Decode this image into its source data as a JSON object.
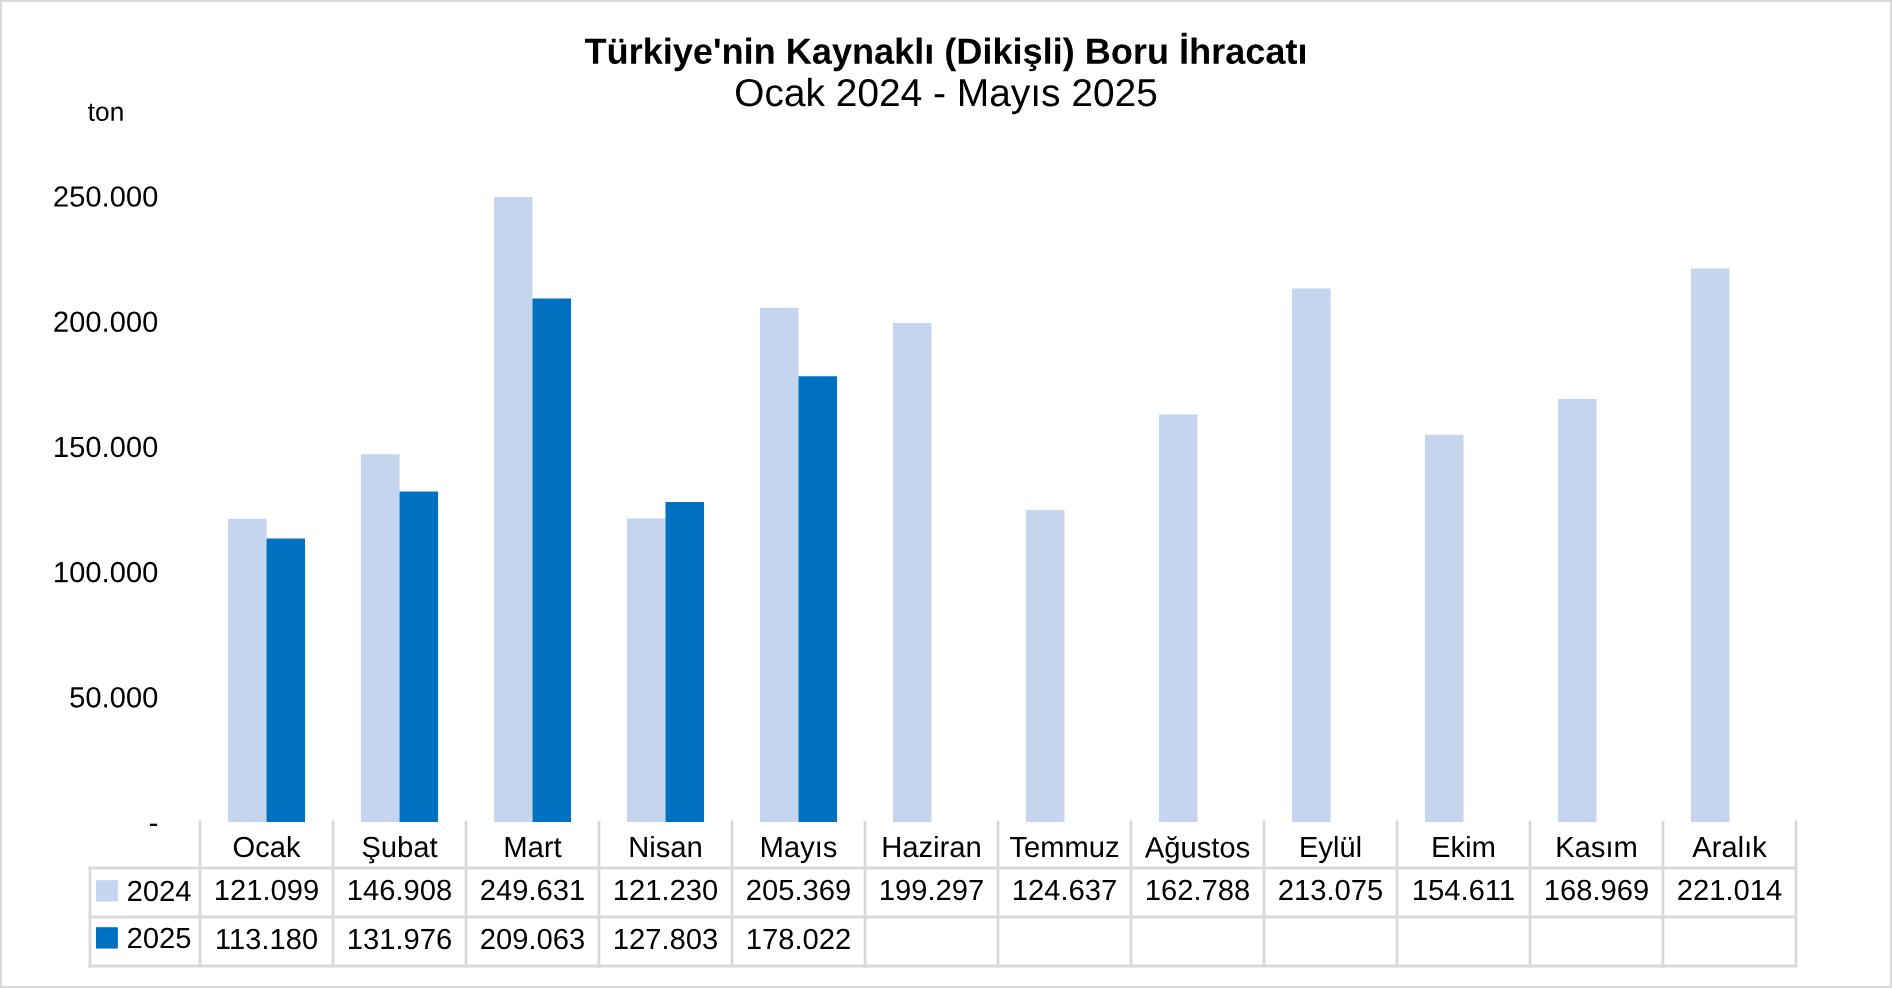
{
  "chart_data": {
    "type": "bar",
    "title": "Türkiye'nin Kaynaklı (Dikişli) Boru İhracatı",
    "subtitle": "Ocak 2024 - Mayıs 2025",
    "ylabel": "ton",
    "categories": [
      "Ocak",
      "Şubat",
      "Mart",
      "Nisan",
      "Mayıs",
      "Haziran",
      "Temmuz",
      "Ağustos",
      "Eylül",
      "Ekim",
      "Kasım",
      "Aralık"
    ],
    "series": [
      {
        "name": "2024",
        "color": "#c5d5ee",
        "values": [
          121099,
          146908,
          249631,
          121230,
          205369,
          199297,
          124637,
          162788,
          213075,
          154611,
          168969,
          221014
        ],
        "value_labels": [
          "121.099",
          "146.908",
          "249.631",
          "121.230",
          "205.369",
          "199.297",
          "124.637",
          "162.788",
          "213.075",
          "154.611",
          "168.969",
          "221.014"
        ]
      },
      {
        "name": "2025",
        "color": "#0070c0",
        "values": [
          113180,
          131976,
          209063,
          127803,
          178022,
          null,
          null,
          null,
          null,
          null,
          null,
          null
        ],
        "value_labels": [
          "113.180",
          "131.976",
          "209.063",
          "127.803",
          "178.022",
          null,
          null,
          null,
          null,
          null,
          null,
          null
        ]
      }
    ],
    "ylim": [
      0,
      250000
    ],
    "yticks": [
      {
        "value": 0,
        "label": "-"
      },
      {
        "value": 50000,
        "label": "50.000"
      },
      {
        "value": 100000,
        "label": "100.000"
      },
      {
        "value": 150000,
        "label": "150.000"
      },
      {
        "value": 200000,
        "label": "200.000"
      },
      {
        "value": 250000,
        "label": "250.000"
      }
    ],
    "grid": false,
    "legend": "bottom"
  }
}
